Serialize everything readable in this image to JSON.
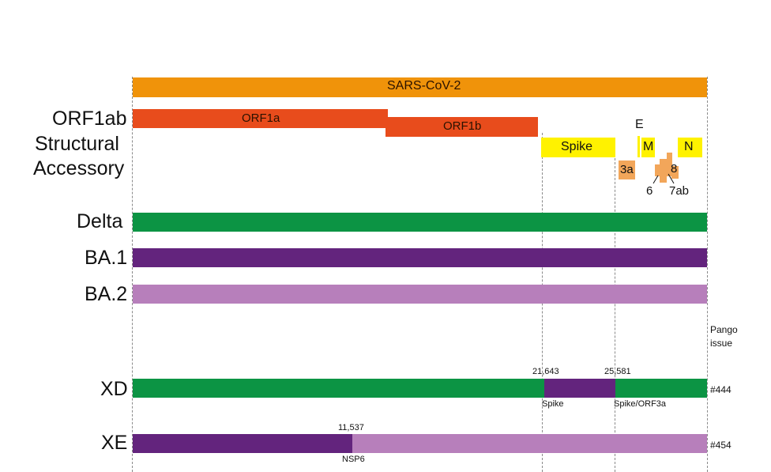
{
  "genome": {
    "label": "SARS-CoV-2",
    "color": "#f0930a"
  },
  "rows": {
    "orf1ab": "ORF1ab",
    "structural": "Structural",
    "accessory": "Accessory",
    "delta": "Delta",
    "ba1": "BA.1",
    "ba2": "BA.2",
    "xd": "XD",
    "xe": "XE"
  },
  "genes": {
    "orf1a": "ORF1a",
    "orf1b": "ORF1b",
    "spike": "Spike",
    "e": "E",
    "m": "M",
    "n": "N",
    "g3a": "3a",
    "g6": "6",
    "g7ab": "7ab",
    "g8": "8"
  },
  "colors": {
    "orf1": "#e84c1c",
    "structural": "#fff200",
    "accessory": "#f2a65a",
    "delta": "#0c9444",
    "ba1": "#63247d",
    "ba2": "#b77fbb"
  },
  "pango": {
    "header_line1": "Pango",
    "header_line2": "issue",
    "xd_issue": "#444",
    "xe_issue": "#454"
  },
  "xd": {
    "breakpoint1": "21,643",
    "breakpoint2": "25,581",
    "region1": "Spike",
    "region2": "Spike/ORF3a"
  },
  "xe": {
    "breakpoint": "11,537",
    "region": "NSP6"
  }
}
